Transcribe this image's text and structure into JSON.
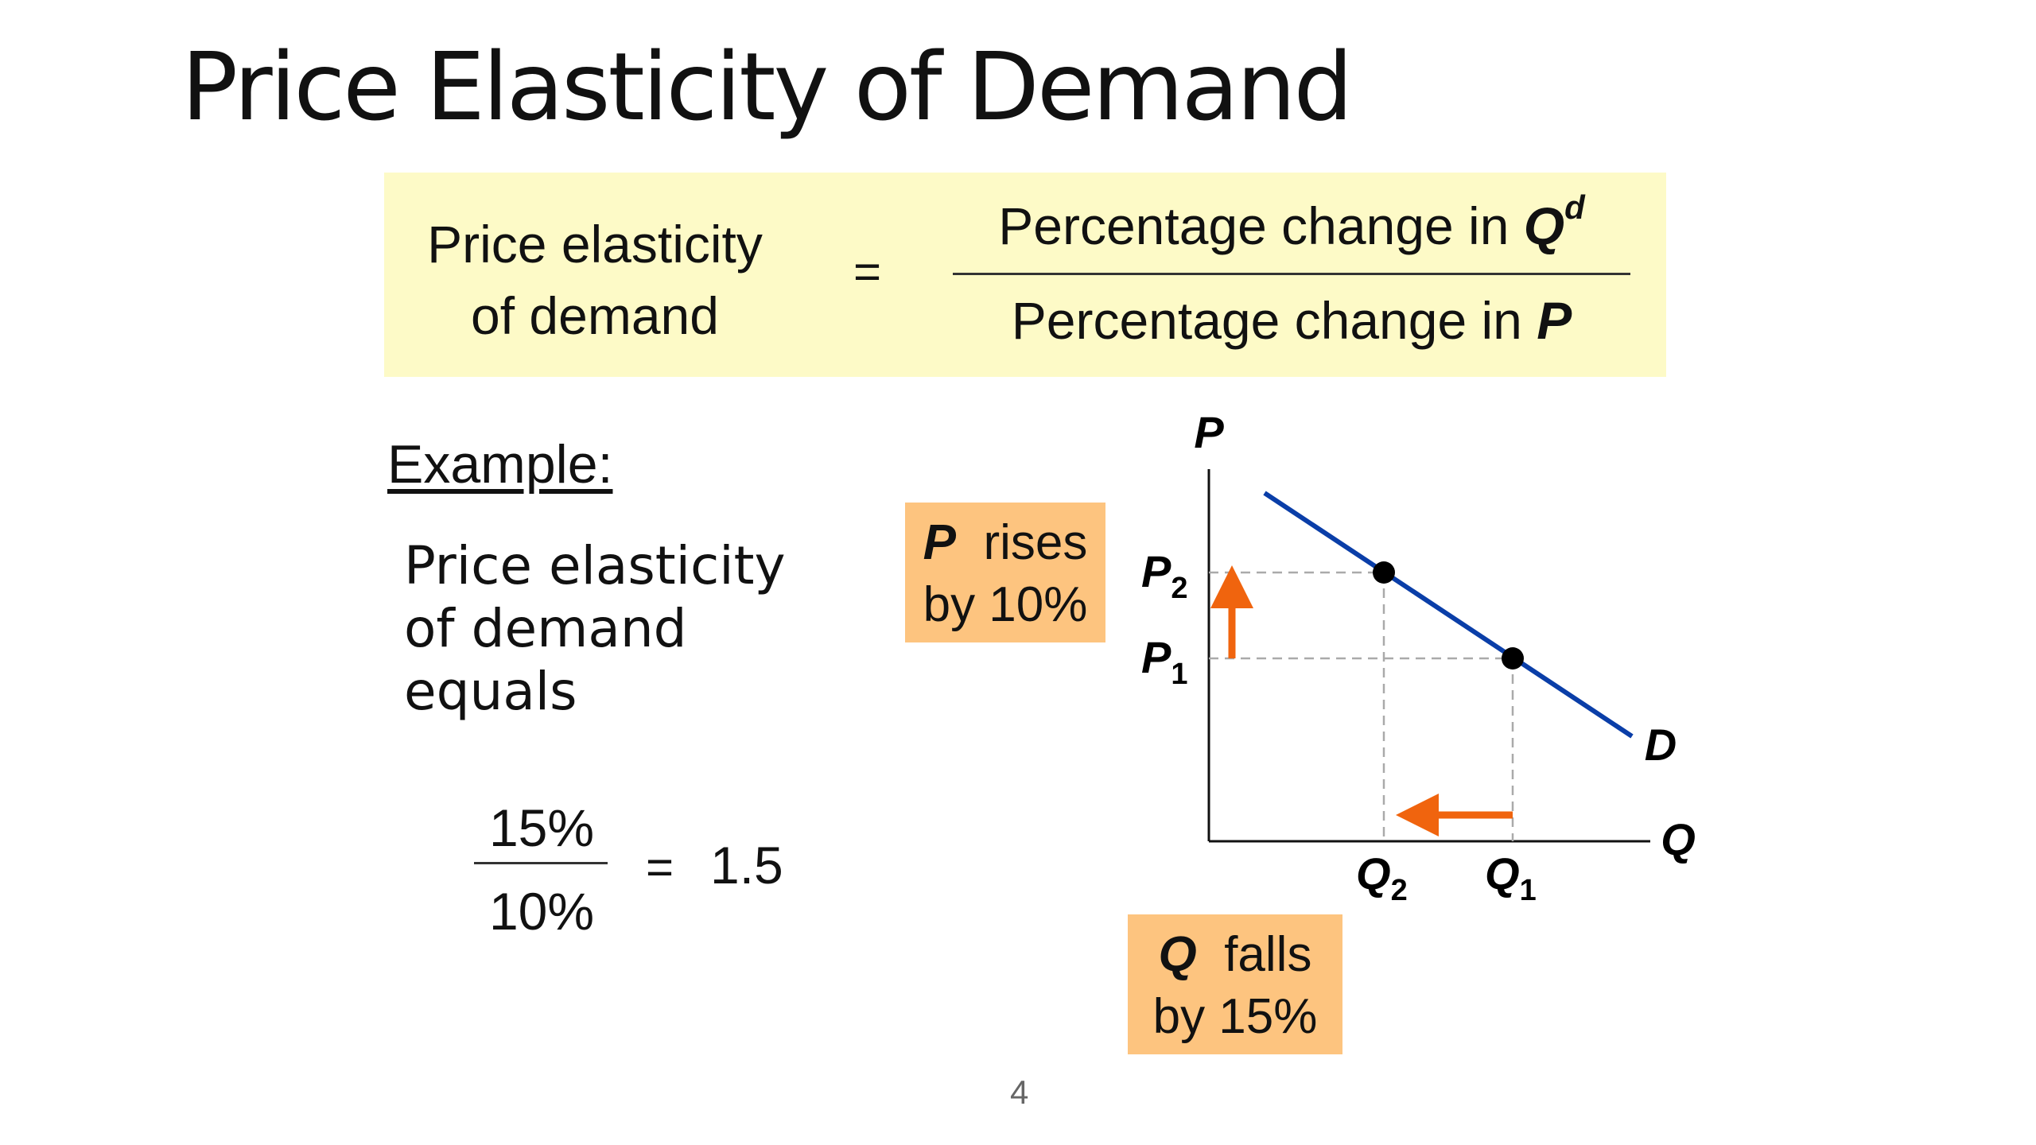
{
  "slide": {
    "title": "Price Elasticity of Demand",
    "page_number": "4"
  },
  "formula": {
    "lhs_line1": "Price elasticity",
    "lhs_line2": "of demand",
    "equals": "=",
    "numerator_text": "Percentage change in ",
    "numerator_var": "Q",
    "numerator_sup": "d",
    "denominator_text": "Percentage change in ",
    "denominator_var": "P"
  },
  "example": {
    "heading": "Example:",
    "desc_line1": "Price elasticity",
    "desc_line2": "of demand",
    "desc_line3": "equals",
    "calc_numerator": "15%",
    "calc_denominator": "10%",
    "calc_equals": "=",
    "calc_result": "1.5"
  },
  "callouts": {
    "price_var": "P",
    "price_word": "rises",
    "price_line2": "by 10%",
    "quantity_var": "Q",
    "quantity_word": "falls",
    "quantity_line2": "by 15%"
  },
  "chart_data": {
    "type": "line",
    "axes": {
      "y_label": "P",
      "x_label": "Q"
    },
    "demand_label": "D",
    "points": [
      {
        "label": "P1/Q1",
        "p_label": "P",
        "p_sub": "1",
        "q_label": "Q",
        "q_sub": "1"
      },
      {
        "label": "P2/Q2",
        "p_label": "P",
        "p_sub": "2",
        "q_label": "Q",
        "q_sub": "2"
      }
    ],
    "price_change_percent": 10,
    "quantity_change_percent": -15,
    "colors": {
      "demand": "#0a3ea8",
      "arrow": "#f0640e",
      "guide": "#aaaaaa",
      "point": "#000000",
      "axis": "#111111"
    }
  }
}
